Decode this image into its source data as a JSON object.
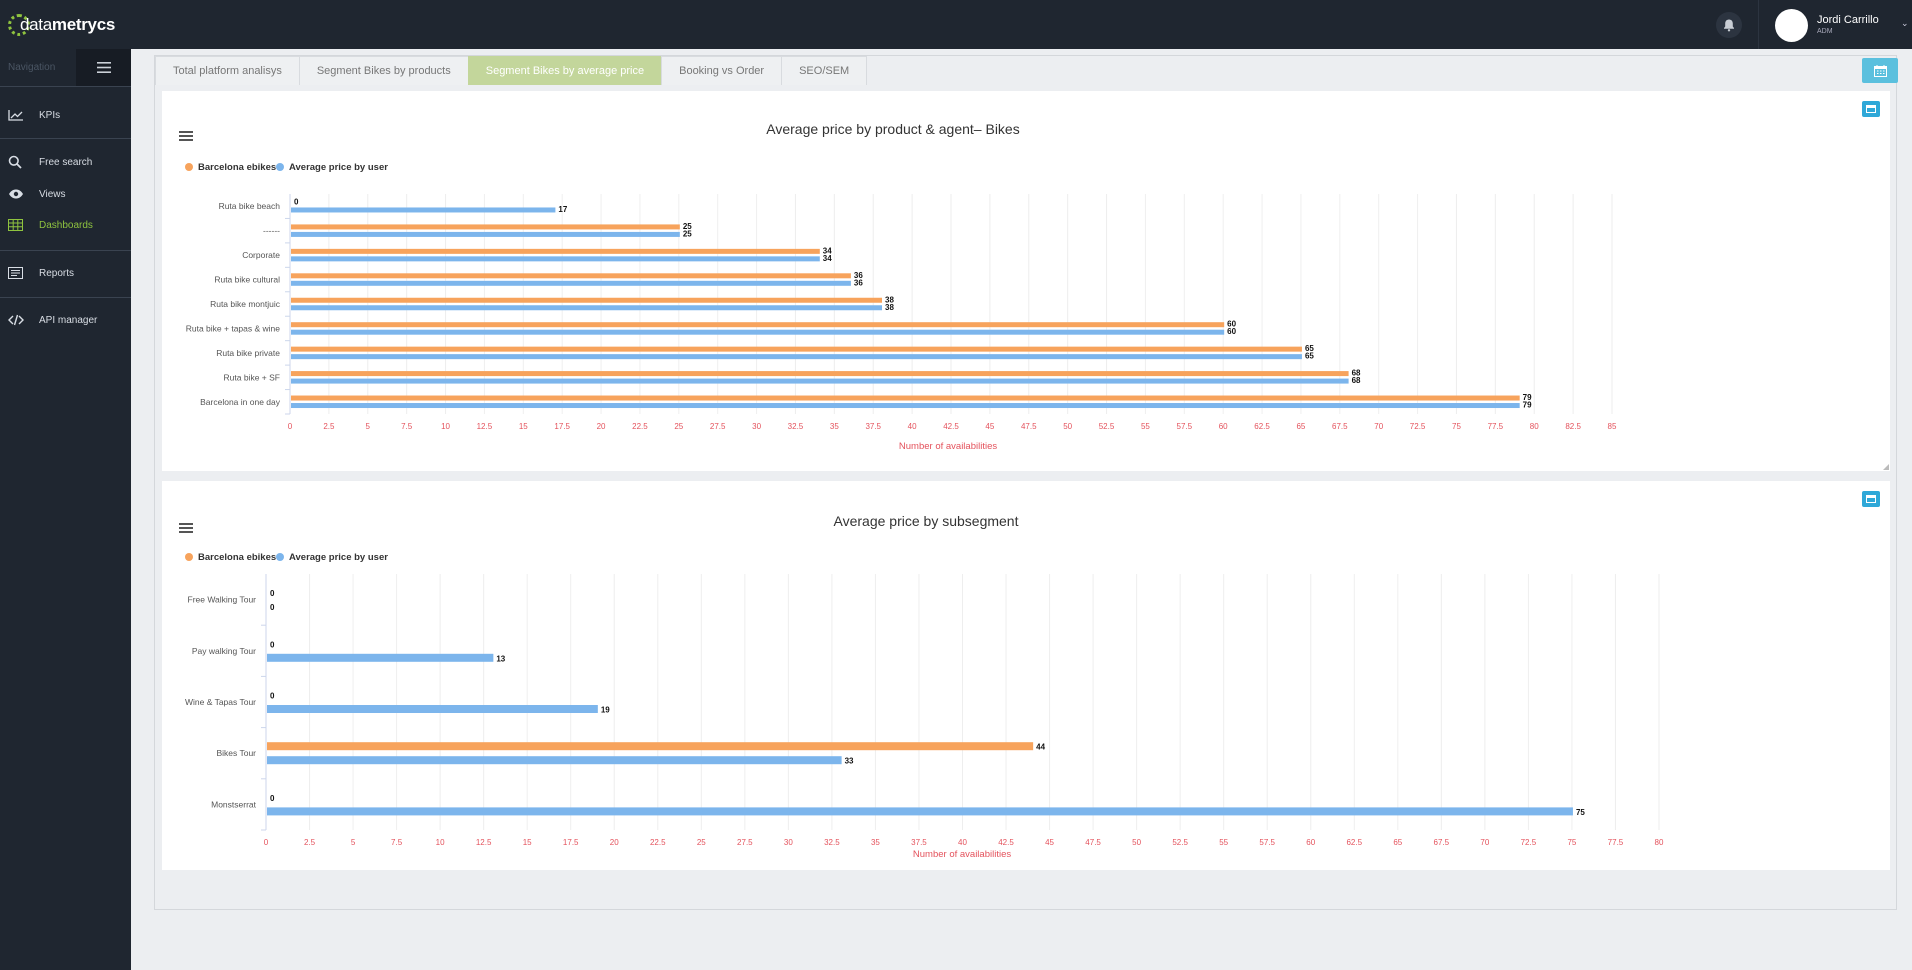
{
  "app": {
    "logo_prefix": "data",
    "logo_suffix": "metrycs"
  },
  "topbar": {
    "user_name": "Jordi Carrillo",
    "user_role": "ADM"
  },
  "sidebar": {
    "heading": "Navigation",
    "items": [
      {
        "label": "KPIs",
        "icon": "line-chart-icon"
      },
      {
        "label": "Free search",
        "icon": "search-icon"
      },
      {
        "label": "Views",
        "icon": "eye-icon"
      },
      {
        "label": "Dashboards",
        "icon": "grid-icon",
        "active": true
      },
      {
        "label": "Reports",
        "icon": "report-icon"
      },
      {
        "label": "API manager",
        "icon": "code-icon"
      }
    ]
  },
  "tabs": [
    {
      "label": "Total platform analisys",
      "active": false
    },
    {
      "label": "Segment Bikes by products",
      "active": false
    },
    {
      "label": "Segment Bikes by average price",
      "active": true
    },
    {
      "label": "Booking vs Order",
      "active": false
    },
    {
      "label": "SEO/SEM",
      "active": false
    }
  ],
  "colors": {
    "series1": "#f7a35c",
    "series2": "#7cb5ec",
    "active_tab": "#c3d69b",
    "accent": "#8fc33f",
    "axis_label": "#e4525c"
  },
  "chart_data": [
    {
      "type": "bar",
      "orientation": "horizontal",
      "title": "Average price by product & agent– Bikes",
      "xlabel": "Number of availabilities",
      "xlim": [
        0,
        85
      ],
      "xtick_step": 2.5,
      "legend_position": "top-left",
      "categories": [
        "Ruta bike beach",
        "------",
        "Corporate",
        "Ruta bike cultural",
        "Ruta bike montjuic",
        "Ruta bike + tapas & wine",
        "Ruta bike private",
        "Ruta bike + SF",
        "Barcelona in one day"
      ],
      "series": [
        {
          "name": "Barcelona ebikes",
          "values": [
            0,
            25,
            34,
            36,
            38,
            60,
            65,
            68,
            79
          ]
        },
        {
          "name": "Average price by user",
          "values": [
            17,
            25,
            34,
            36,
            38,
            60,
            65,
            68,
            79
          ]
        }
      ]
    },
    {
      "type": "bar",
      "orientation": "horizontal",
      "title": "Average price by subsegment",
      "xlabel": "Number of availabilities",
      "xlim": [
        0,
        80
      ],
      "xtick_step": 2.5,
      "legend_position": "top-left",
      "categories": [
        "Free Walking Tour",
        "Pay walking Tour",
        "Wine & Tapas Tour",
        "Bikes Tour",
        "Monstserrat"
      ],
      "series": [
        {
          "name": "Barcelona ebikes",
          "values": [
            0,
            0,
            0,
            44,
            0
          ]
        },
        {
          "name": "Average price by user",
          "values": [
            0,
            13,
            19,
            33,
            75
          ]
        }
      ]
    }
  ]
}
